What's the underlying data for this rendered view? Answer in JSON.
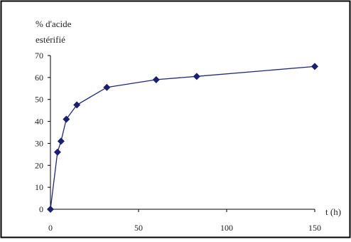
{
  "chart_data": {
    "type": "line",
    "ylabel_line1": "% d'acide",
    "ylabel_line2": "estérifié",
    "xlabel": "t (h)",
    "xlim": [
      0,
      150
    ],
    "ylim": [
      0,
      70
    ],
    "x_ticks": [
      0,
      50,
      100,
      150
    ],
    "y_ticks": [
      0,
      10,
      20,
      30,
      40,
      50,
      60,
      70
    ],
    "grid": false,
    "legend": "none",
    "series": [
      {
        "x": [
          0,
          4,
          6,
          9,
          15,
          32,
          60,
          83,
          150
        ],
        "y": [
          0,
          26,
          31,
          41,
          47.5,
          55.5,
          59,
          60.5,
          65
        ]
      }
    ],
    "colors": {
      "line": "#1f2a7a",
      "marker": "#1a1f6e",
      "axis": "#000000",
      "frame": "#000000"
    }
  }
}
